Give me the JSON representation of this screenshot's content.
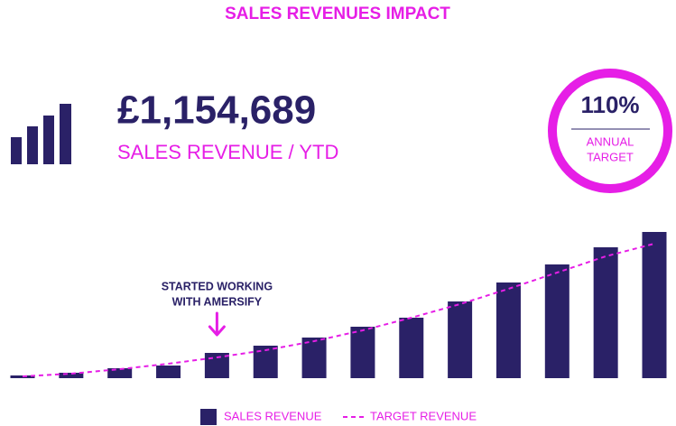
{
  "chart_data": {
    "type": "bar",
    "title": "SALES REVENUES IMPACT",
    "kpi": {
      "value": "£1,154,689",
      "label": "SALES REVENUE / YTD"
    },
    "target_badge": {
      "value": "110%",
      "label": [
        "ANNUAL",
        "TARGET"
      ]
    },
    "annotation": {
      "lines": [
        "STARTED WORKING",
        "WITH AMERSIFY"
      ],
      "category_index": 4
    },
    "categories": [
      null,
      null,
      null,
      null,
      null,
      null,
      null,
      null,
      null,
      null,
      null,
      null,
      null,
      null
    ],
    "series": [
      {
        "name": "SALES REVENUE",
        "type": "bar",
        "color": "#2a2167",
        "values": [
          3,
          6,
          11,
          14,
          28,
          36,
          45,
          57,
          67,
          85,
          106,
          126,
          145,
          162
        ]
      },
      {
        "name": "TARGET REVENUE",
        "type": "line",
        "dashed": true,
        "color": "#e61ee6",
        "values": [
          2,
          5,
          10,
          16,
          23,
          31,
          41,
          53,
          67,
          82,
          99,
          117,
          135,
          149
        ]
      }
    ],
    "ylim": [
      0,
      170
    ],
    "grid": false
  }
}
